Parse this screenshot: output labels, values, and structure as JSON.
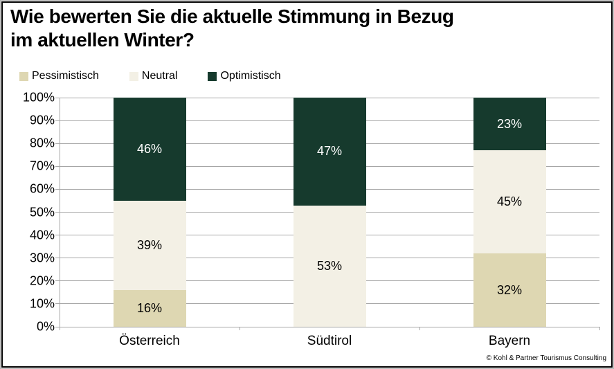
{
  "window": {
    "background": "#ffffff",
    "frame_border_color": "#000000"
  },
  "title": {
    "line1": "Wie bewerten Sie die aktuelle Stimmung in Bezug",
    "line2": "im aktuellen Winter?"
  },
  "legend": {
    "items": [
      {
        "label": "Pessimistisch",
        "color": "#ded7b2"
      },
      {
        "label": "Neutral",
        "color": "#f3f0e5"
      },
      {
        "label": "Optimistisch",
        "color": "#163a2d"
      }
    ]
  },
  "footer": {
    "copyright": "© Kohl & Partner Tourismus Consulting"
  },
  "chart_data": {
    "type": "bar",
    "stacked": true,
    "title": "Wie bewerten Sie die aktuelle Stimmung in Bezug im aktuellen Winter?",
    "categories": [
      "Österreich",
      "Südtirol",
      "Bayern"
    ],
    "series": [
      {
        "name": "Pessimistisch",
        "color": "#ded7b2",
        "label_color": "#000000",
        "values": [
          16,
          0,
          32
        ]
      },
      {
        "name": "Neutral",
        "color": "#f3f0e5",
        "label_color": "#000000",
        "values": [
          39,
          53,
          45
        ]
      },
      {
        "name": "Optimistisch",
        "color": "#163a2d",
        "label_color": "#ffffff",
        "values": [
          46,
          47,
          23
        ]
      }
    ],
    "value_suffix": "%",
    "xlabel": "",
    "ylabel": "",
    "ylim": [
      0,
      100
    ],
    "ytick_step": 10,
    "ytick_labels": [
      "0%",
      "10%",
      "20%",
      "30%",
      "40%",
      "50%",
      "60%",
      "70%",
      "80%",
      "90%",
      "100%"
    ],
    "grid": true,
    "gridline_color": "#a6a6a6",
    "legend_position": "top-left"
  }
}
